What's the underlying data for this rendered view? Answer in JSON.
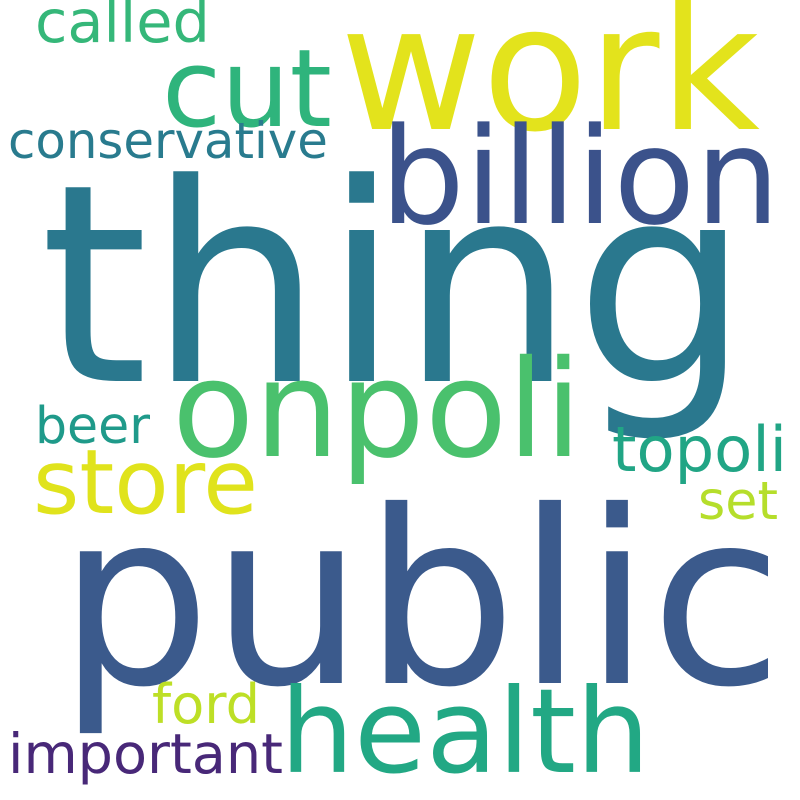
{
  "words": [
    {
      "id": "thing",
      "text": "thing",
      "color": "#2a788e"
    },
    {
      "id": "public",
      "text": "public",
      "color": "#3b5a8c"
    },
    {
      "id": "work",
      "text": "work",
      "color": "#e3e31c"
    },
    {
      "id": "onpoli",
      "text": "onpoli",
      "color": "#4ac16d"
    },
    {
      "id": "health",
      "text": "health",
      "color": "#22a884"
    },
    {
      "id": "billion",
      "text": "billion",
      "color": "#3b528b"
    },
    {
      "id": "cut",
      "text": "cut",
      "color": "#2fb47c"
    },
    {
      "id": "store",
      "text": "store",
      "color": "#e0e31c"
    },
    {
      "id": "conservative",
      "text": "conservative",
      "color": "#297b8e"
    },
    {
      "id": "important",
      "text": "important",
      "color": "#482878"
    },
    {
      "id": "topoli",
      "text": "topoli",
      "color": "#21a585"
    },
    {
      "id": "called",
      "text": "called",
      "color": "#35b779"
    },
    {
      "id": "beer",
      "text": "beer",
      "color": "#1f9a8a"
    },
    {
      "id": "ford",
      "text": "ford",
      "color": "#bddf26"
    },
    {
      "id": "set",
      "text": "set",
      "color": "#b5de2b"
    }
  ]
}
